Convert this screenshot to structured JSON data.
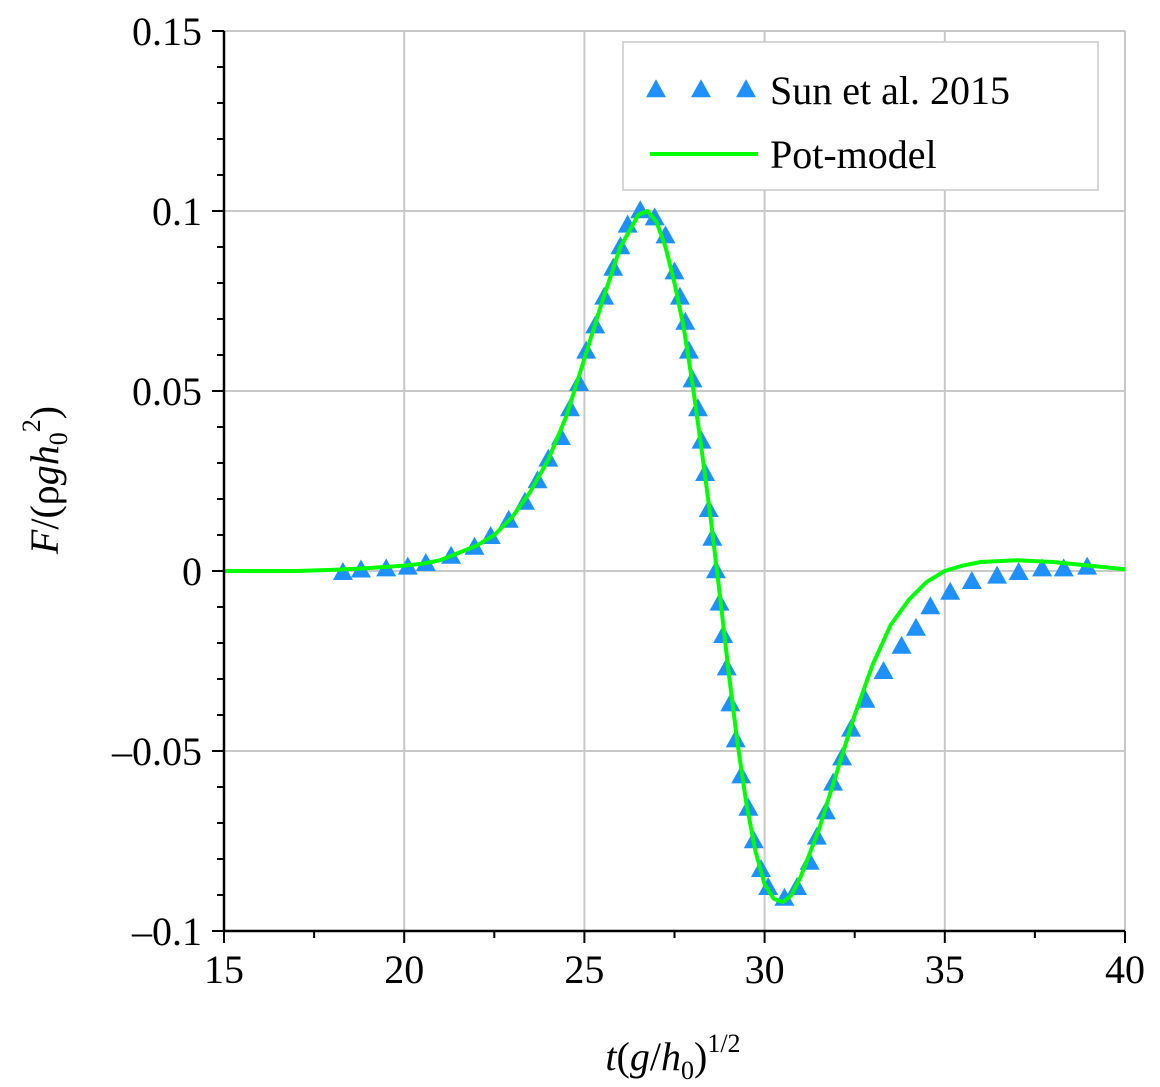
{
  "chart_data": {
    "type": "line",
    "title": "",
    "xlabel": {
      "main": "t",
      "sub_g": "g",
      "sub_h": "h",
      "subscript": "0",
      "power": "1/2"
    },
    "ylabel": {
      "main": "F",
      "rho": "ρ",
      "g": "g",
      "h": "h",
      "subscript": "0",
      "power": "2"
    },
    "xlim": [
      15,
      40
    ],
    "ylim": [
      -0.1,
      0.15
    ],
    "x_ticks": [
      15,
      20,
      25,
      30,
      35,
      40
    ],
    "x_tick_labels": [
      "15",
      "20",
      "25",
      "30",
      "35",
      "40"
    ],
    "y_ticks": [
      -0.1,
      -0.05,
      0,
      0.05,
      0.1,
      0.15
    ],
    "y_tick_labels": [
      "–0.1",
      "–0.05",
      "0",
      "0.05",
      "0.1",
      "0.15"
    ],
    "y_minor_step": 0.01,
    "x_minor_step": 2.5,
    "grid": true,
    "legend": {
      "placement": "top-right",
      "entries": [
        {
          "label": "Sun et al. 2015",
          "marker": "triangle",
          "color": "#1e90ff"
        },
        {
          "label": "Pot-model",
          "marker": "line",
          "color": "#00ff00"
        }
      ]
    },
    "series": [
      {
        "name": "Sun et al. 2015",
        "style": "markers",
        "color": "#1e90ff",
        "points": [
          [
            18.3,
            -0.0005
          ],
          [
            18.8,
            0.0002
          ],
          [
            19.5,
            0.0005
          ],
          [
            20.1,
            0.001
          ],
          [
            20.6,
            0.002
          ],
          [
            21.3,
            0.004
          ],
          [
            21.95,
            0.0065
          ],
          [
            22.4,
            0.0095
          ],
          [
            22.9,
            0.014
          ],
          [
            23.35,
            0.019
          ],
          [
            23.7,
            0.025
          ],
          [
            24.0,
            0.031
          ],
          [
            24.35,
            0.037
          ],
          [
            24.6,
            0.045
          ],
          [
            24.85,
            0.052
          ],
          [
            25.05,
            0.061
          ],
          [
            25.3,
            0.068
          ],
          [
            25.55,
            0.076
          ],
          [
            25.8,
            0.084
          ],
          [
            26.0,
            0.09
          ],
          [
            26.2,
            0.096
          ],
          [
            26.55,
            0.1
          ],
          [
            26.95,
            0.098
          ],
          [
            27.25,
            0.093
          ],
          [
            27.5,
            0.083
          ],
          [
            27.65,
            0.076
          ],
          [
            27.8,
            0.069
          ],
          [
            27.9,
            0.061
          ],
          [
            28.0,
            0.053
          ],
          [
            28.15,
            0.045
          ],
          [
            28.25,
            0.036
          ],
          [
            28.35,
            0.027
          ],
          [
            28.45,
            0.017
          ],
          [
            28.55,
            0.009
          ],
          [
            28.65,
            0.0
          ],
          [
            28.75,
            -0.009
          ],
          [
            28.85,
            -0.018
          ],
          [
            28.95,
            -0.027
          ],
          [
            29.05,
            -0.037
          ],
          [
            29.2,
            -0.047
          ],
          [
            29.35,
            -0.057
          ],
          [
            29.55,
            -0.066
          ],
          [
            29.7,
            -0.075
          ],
          [
            29.9,
            -0.083
          ],
          [
            30.1,
            -0.088
          ],
          [
            30.55,
            -0.091
          ],
          [
            30.9,
            -0.088
          ],
          [
            31.25,
            -0.081
          ],
          [
            31.45,
            -0.074
          ],
          [
            31.7,
            -0.067
          ],
          [
            31.9,
            -0.059
          ],
          [
            32.15,
            -0.052
          ],
          [
            32.4,
            -0.044
          ],
          [
            32.8,
            -0.036
          ],
          [
            33.3,
            -0.028
          ],
          [
            33.8,
            -0.021
          ],
          [
            34.2,
            -0.016
          ],
          [
            34.6,
            -0.01
          ],
          [
            35.15,
            -0.006
          ],
          [
            35.75,
            -0.003
          ],
          [
            36.45,
            -0.0015
          ],
          [
            37.05,
            -0.0005
          ],
          [
            37.7,
            0.0005
          ],
          [
            38.3,
            0.0005
          ],
          [
            38.95,
            0.001
          ]
        ]
      },
      {
        "name": "Pot-model",
        "style": "line",
        "color": "#00ff00",
        "points": [
          [
            15.0,
            0.0
          ],
          [
            17.0,
            0.0
          ],
          [
            18.0,
            0.0003
          ],
          [
            19.0,
            0.0008
          ],
          [
            20.0,
            0.0015
          ],
          [
            20.5,
            0.002
          ],
          [
            21.0,
            0.003
          ],
          [
            21.5,
            0.005
          ],
          [
            22.0,
            0.007
          ],
          [
            22.5,
            0.01
          ],
          [
            23.0,
            0.015
          ],
          [
            23.5,
            0.022
          ],
          [
            24.0,
            0.031
          ],
          [
            24.5,
            0.043
          ],
          [
            25.0,
            0.059
          ],
          [
            25.5,
            0.075
          ],
          [
            26.0,
            0.09
          ],
          [
            26.5,
            0.099
          ],
          [
            26.75,
            0.1
          ],
          [
            27.0,
            0.097
          ],
          [
            27.25,
            0.09
          ],
          [
            27.5,
            0.08
          ],
          [
            27.75,
            0.068
          ],
          [
            28.0,
            0.052
          ],
          [
            28.25,
            0.034
          ],
          [
            28.5,
            0.015
          ],
          [
            28.75,
            -0.006
          ],
          [
            29.0,
            -0.028
          ],
          [
            29.25,
            -0.048
          ],
          [
            29.5,
            -0.065
          ],
          [
            29.75,
            -0.078
          ],
          [
            30.0,
            -0.087
          ],
          [
            30.25,
            -0.091
          ],
          [
            30.5,
            -0.092
          ],
          [
            30.75,
            -0.09
          ],
          [
            31.0,
            -0.085
          ],
          [
            31.5,
            -0.072
          ],
          [
            32.0,
            -0.056
          ],
          [
            32.5,
            -0.04
          ],
          [
            33.0,
            -0.026
          ],
          [
            33.5,
            -0.015
          ],
          [
            34.0,
            -0.008
          ],
          [
            34.5,
            -0.003
          ],
          [
            35.0,
            0.0
          ],
          [
            35.5,
            0.0015
          ],
          [
            36.0,
            0.0025
          ],
          [
            37.0,
            0.003
          ],
          [
            38.0,
            0.0025
          ],
          [
            39.0,
            0.0015
          ],
          [
            40.0,
            0.0005
          ]
        ]
      }
    ]
  }
}
